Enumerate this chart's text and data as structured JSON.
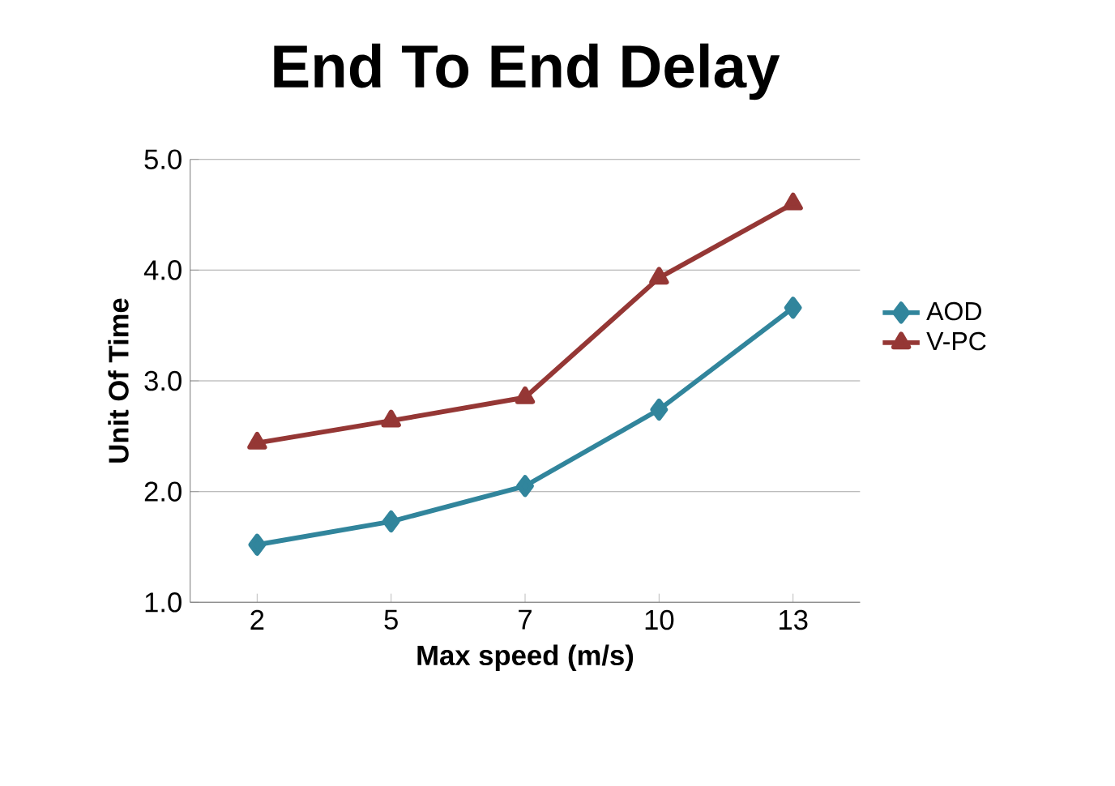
{
  "chart_data": {
    "type": "line",
    "title": "End To End Delay",
    "xlabel": "Max speed (m/s)",
    "ylabel": "Unit Of Time",
    "categories": [
      "2",
      "5",
      "7",
      "10",
      "13"
    ],
    "series": [
      {
        "name": "AOD",
        "color": "#31859c",
        "marker": "diamond",
        "values": [
          1.52,
          1.73,
          2.05,
          2.74,
          3.66
        ]
      },
      {
        "name": "V-PC",
        "color": "#953735",
        "marker": "triangle",
        "values": [
          2.44,
          2.64,
          2.85,
          3.93,
          4.6
        ]
      }
    ],
    "ylim": [
      1.0,
      5.0
    ],
    "yticks": [
      {
        "value": 1,
        "label": "1.0"
      },
      {
        "value": 2,
        "label": "2.0"
      },
      {
        "value": 3,
        "label": "3.0"
      },
      {
        "value": 4,
        "label": "4.0"
      },
      {
        "value": 5,
        "label": "5.0"
      }
    ],
    "grid": "y",
    "legend": "right",
    "line_style": "solid"
  }
}
